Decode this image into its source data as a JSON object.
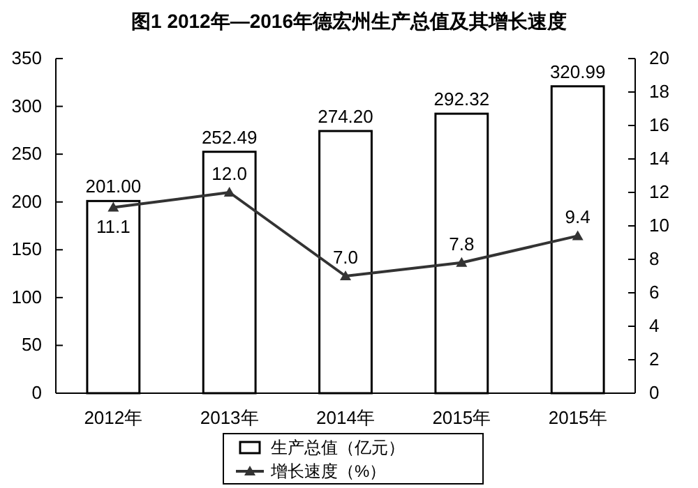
{
  "chart_data": {
    "type": "bar",
    "title": "图1 2012年—2016年德宏州生产总值及其增长速度",
    "categories": [
      "2012年",
      "2013年",
      "2014年",
      "2015年",
      "2015年"
    ],
    "series": [
      {
        "name": "生产总值（亿元）",
        "color": "#ffffff",
        "values": [
          201.0,
          252.49,
          274.2,
          292.32,
          320.99
        ],
        "value_labels": [
          "201.00",
          "252.49",
          "274.20",
          "292.32",
          "320.99"
        ]
      },
      {
        "name": "增长速度（%）",
        "type": "line",
        "axis": "y2",
        "color": "#333333",
        "marker": "triangle",
        "values": [
          11.1,
          12.0,
          7.0,
          7.8,
          9.4
        ],
        "value_labels": [
          "11.1",
          "12.0",
          "7.0",
          "7.8",
          "9.4"
        ]
      }
    ],
    "ylim": [
      0,
      350
    ],
    "yticks": [
      0,
      50,
      100,
      150,
      200,
      250,
      300,
      350
    ],
    "y2lim": [
      0,
      20
    ],
    "y2ticks": [
      0,
      2,
      4,
      6,
      8,
      10,
      12,
      14,
      16,
      18,
      20
    ],
    "legend": "bottom",
    "grid": false
  }
}
